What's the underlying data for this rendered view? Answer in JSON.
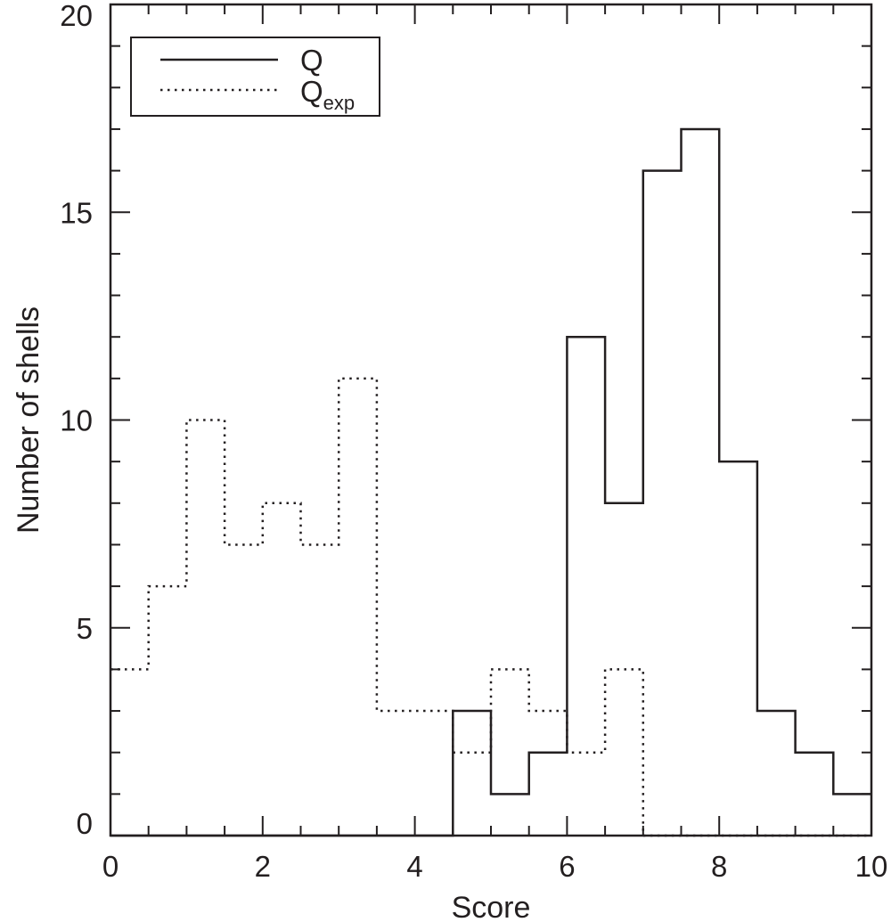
{
  "chart_data": {
    "type": "step-histogram",
    "xlabel": "Score",
    "ylabel": "Number of shells",
    "xlim": [
      0,
      10
    ],
    "ylim": [
      0,
      20
    ],
    "xticks": [
      "0",
      "2",
      "4",
      "6",
      "8",
      "10"
    ],
    "yticks": [
      "0",
      "5",
      "10",
      "15",
      "20"
    ],
    "bin_edges": [
      0,
      0.5,
      1,
      1.5,
      2,
      2.5,
      3,
      3.5,
      4,
      4.5,
      5,
      5.5,
      6,
      6.5,
      7,
      7.5,
      8,
      8.5,
      9,
      9.5,
      10
    ],
    "series": [
      {
        "name": "Q",
        "subscript": "",
        "line_style": "solid",
        "values": [
          0,
          0,
          0,
          0,
          0,
          0,
          0,
          0,
          0,
          3,
          1,
          2,
          12,
          8,
          16,
          17,
          9,
          3,
          2,
          1
        ]
      },
      {
        "name": "Q",
        "subscript": "exp",
        "line_style": "dotted",
        "values": [
          4,
          6,
          10,
          7,
          8,
          7,
          11,
          3,
          3,
          2,
          4,
          3,
          2,
          4,
          0,
          0,
          0,
          0,
          0,
          0
        ]
      }
    ],
    "legend_position": "top-left",
    "grid": false,
    "colors": {
      "line": "#231f20",
      "background": "#ffffff"
    }
  }
}
